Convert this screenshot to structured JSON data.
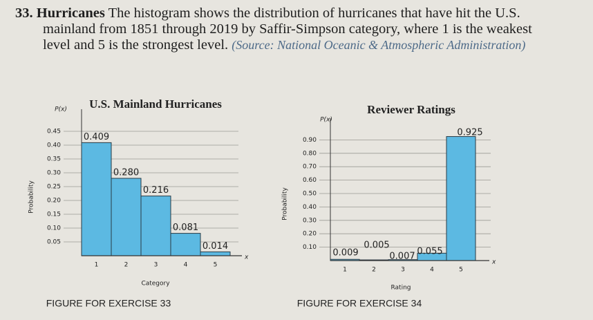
{
  "exercise": {
    "number": "33.",
    "title": "Hurricanes",
    "text": "The histogram shows the distribution of hurricanes that have hit the U.S. mainland from 1851 through 2019 by Saffir-Simpson category, where 1 is the weakest level and 5 is the strongest level.",
    "source": "(Source: National Oceanic & Atmospheric Administration)"
  },
  "chart_data": [
    {
      "type": "bar",
      "title": "U.S. Mainland Hurricanes",
      "y_axis_symbol": "P(x)",
      "ylabel": "Probability",
      "xlabel": "Category",
      "x_axis_symbol": "x",
      "categories": [
        "1",
        "2",
        "3",
        "4",
        "5"
      ],
      "values": [
        0.409,
        0.28,
        0.216,
        0.081,
        0.014
      ],
      "value_labels": [
        "0.409",
        "0.280",
        "0.216",
        "0.081",
        "0.014"
      ],
      "color": "#5cb9e2",
      "ylim": [
        0,
        0.5
      ],
      "yticks": [
        0.05,
        {
          "value": 0.1,
          "label": "0.10"
        },
        0.15,
        {
          "value": 0.2,
          "label": "0.20"
        },
        0.25,
        {
          "value": 0.3,
          "label": "0.30"
        },
        0.35,
        {
          "value": 0.4,
          "label": "0.40"
        },
        0.45
      ],
      "grid": true,
      "caption": "FIGURE FOR EXERCISE 33"
    },
    {
      "type": "bar",
      "title": "Reviewer Ratings",
      "y_axis_symbol": "P(x)",
      "ylabel": "Probability",
      "xlabel": "Rating",
      "x_axis_symbol": "x",
      "categories": [
        "1",
        "2",
        "3",
        "4",
        "5"
      ],
      "values": [
        0.009,
        0.005,
        0.007,
        0.055,
        0.925
      ],
      "value_labels": [
        "0.009",
        "0.005",
        "0.007",
        "0.055",
        "0.925"
      ],
      "color": "#5cb9e2",
      "ylim": [
        0,
        1
      ],
      "yticks": [
        {
          "value": 0.1,
          "label": "0.10"
        },
        {
          "value": 0.2,
          "label": "0.20"
        },
        {
          "value": 0.3,
          "label": "0.30"
        },
        {
          "value": 0.4,
          "label": "0.40"
        },
        {
          "value": 0.5,
          "label": "0.50"
        },
        {
          "value": 0.6,
          "label": "0.60"
        },
        {
          "value": 0.7,
          "label": "0.70"
        },
        {
          "value": 0.8,
          "label": "0.80"
        },
        {
          "value": 0.9,
          "label": "0.90"
        }
      ],
      "grid": true,
      "caption": "FIGURE FOR EXERCISE 34"
    }
  ]
}
